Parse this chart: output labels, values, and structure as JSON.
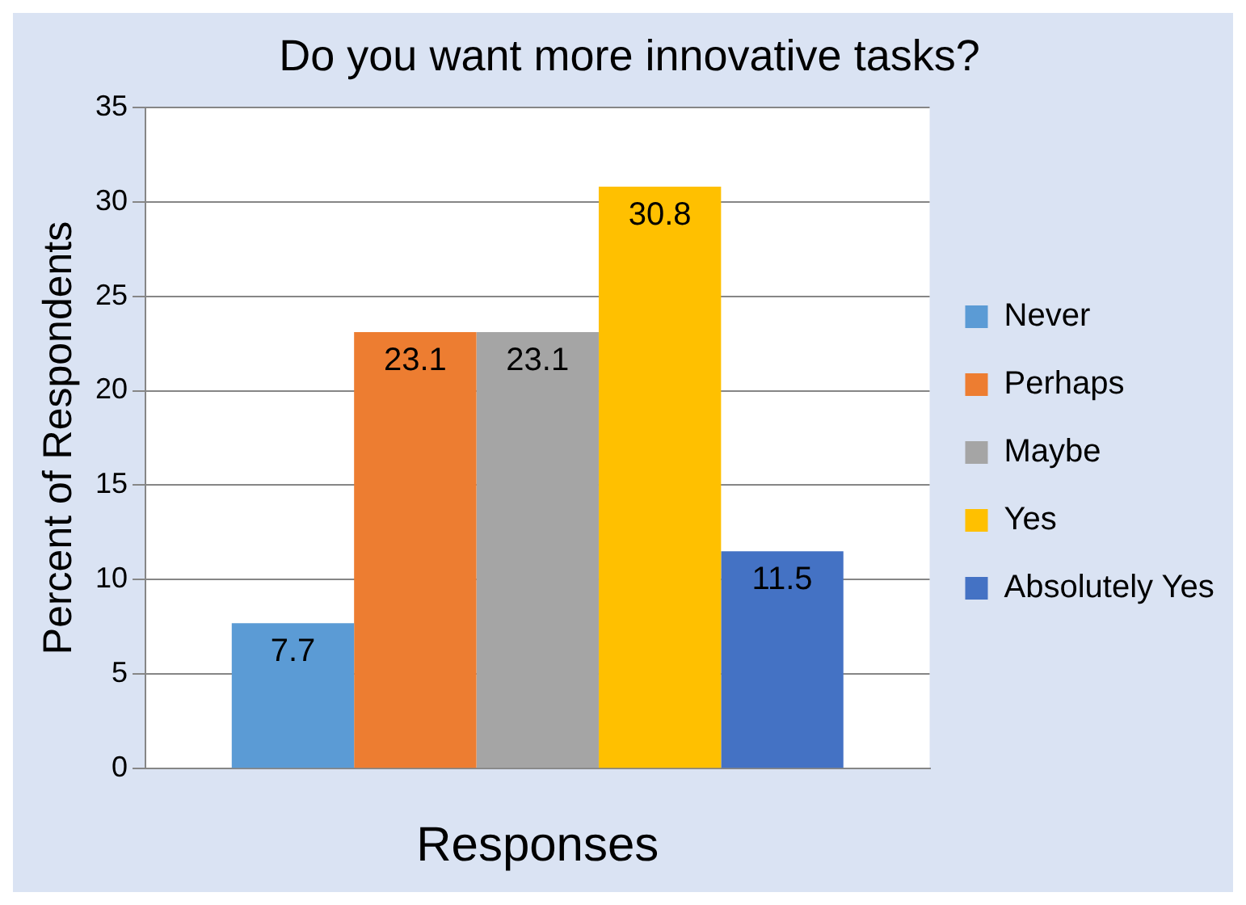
{
  "chart_data": {
    "type": "bar",
    "title": "Do you want more innovative tasks?",
    "xlabel": "Responses",
    "ylabel": "Percent of Respondents",
    "categories": [
      null
    ],
    "series": [
      {
        "name": "Never",
        "color": "#5b9bd5",
        "values": [
          7.7
        ]
      },
      {
        "name": "Perhaps",
        "color": "#ed7d31",
        "values": [
          23.1
        ]
      },
      {
        "name": "Maybe",
        "color": "#a5a5a5",
        "values": [
          23.1
        ]
      },
      {
        "name": "Yes",
        "color": "#ffc000",
        "values": [
          30.8
        ]
      },
      {
        "name": "Absolutely Yes",
        "color": "#4472c4",
        "values": [
          11.5
        ]
      }
    ],
    "ylim": [
      0,
      35
    ],
    "yticks": [
      0,
      5,
      10,
      15,
      20,
      25,
      30,
      35
    ],
    "grid": "y",
    "legend": "right",
    "data_labels": true
  }
}
